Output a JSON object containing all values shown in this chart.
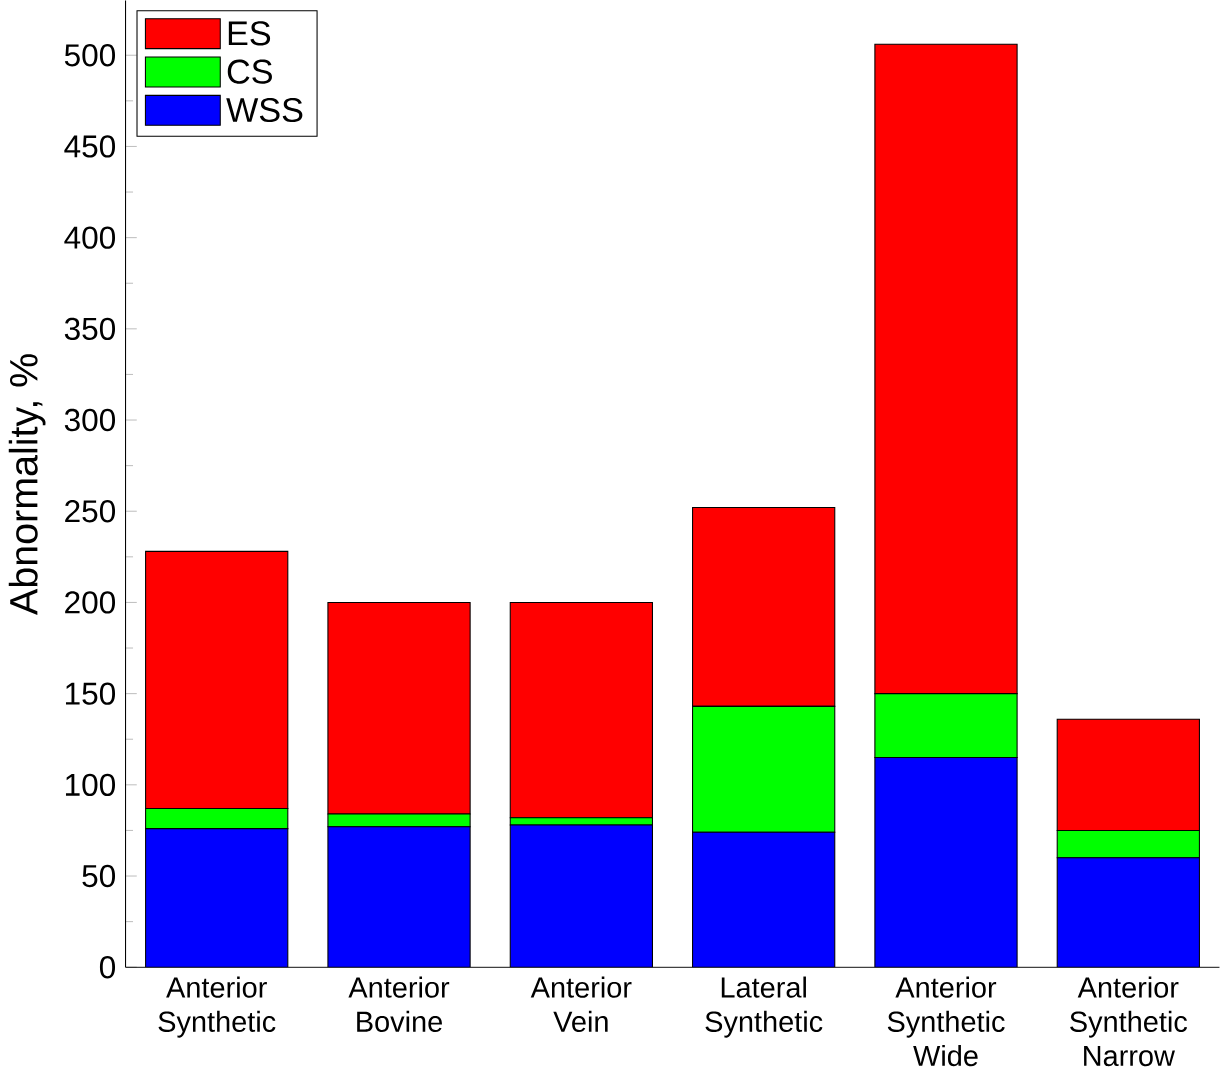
{
  "chart_data": {
    "type": "bar",
    "stacked": true,
    "ylabel": "Abnormality, %",
    "categories": [
      "Anterior Synthetic",
      "Anterior Bovine",
      "Anterior Vein",
      "Lateral Synthetic",
      "Anterior Synthetic Wide",
      "Anterior Synthetic Narrow"
    ],
    "series": [
      {
        "name": "WSS",
        "color": "#0000ff",
        "values": [
          76,
          77,
          78,
          74,
          115,
          60
        ]
      },
      {
        "name": "CS",
        "color": "#00ff00",
        "values": [
          11,
          7,
          4,
          69,
          35,
          15
        ]
      },
      {
        "name": "ES",
        "color": "#ff0000",
        "values": [
          141,
          116,
          118,
          109,
          356,
          61
        ]
      }
    ],
    "ylim": [
      0,
      530
    ],
    "yticks": [
      0,
      50,
      100,
      150,
      200,
      250,
      300,
      350,
      400,
      450,
      500
    ],
    "legend": "top left",
    "grid": false
  }
}
